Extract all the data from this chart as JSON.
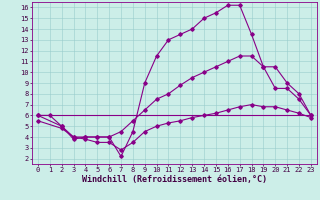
{
  "xlabel": "Windchill (Refroidissement éolien,°C)",
  "bg_color": "#cceee8",
  "line_color": "#880088",
  "xlim": [
    -0.5,
    23.5
  ],
  "ylim": [
    1.5,
    16.5
  ],
  "xticks": [
    0,
    1,
    2,
    3,
    4,
    5,
    6,
    7,
    8,
    9,
    10,
    11,
    12,
    13,
    14,
    15,
    16,
    17,
    18,
    19,
    20,
    21,
    22,
    23
  ],
  "yticks": [
    2,
    3,
    4,
    5,
    6,
    7,
    8,
    9,
    10,
    11,
    12,
    13,
    14,
    15,
    16
  ],
  "line1_x": [
    0,
    1,
    2,
    3,
    4,
    5,
    6,
    7,
    8,
    9,
    10,
    11,
    12,
    13,
    14,
    15,
    16,
    17,
    18,
    19,
    20,
    21,
    22,
    23
  ],
  "line1_y": [
    6.0,
    6.0,
    5.0,
    3.8,
    4.0,
    4.0,
    4.0,
    2.2,
    4.5,
    9.0,
    11.5,
    13.0,
    13.5,
    14.0,
    15.0,
    15.5,
    16.2,
    16.2,
    13.5,
    10.5,
    8.5,
    8.5,
    7.5,
    6.0
  ],
  "line2_x": [
    0,
    2,
    3,
    4,
    5,
    6,
    7,
    8,
    9,
    10,
    11,
    12,
    13,
    14,
    15,
    16,
    17,
    18,
    19,
    20,
    21,
    22,
    23
  ],
  "line2_y": [
    6.0,
    5.0,
    4.0,
    4.0,
    4.0,
    4.0,
    4.5,
    5.5,
    6.5,
    7.5,
    8.0,
    8.8,
    9.5,
    10.0,
    10.5,
    11.0,
    11.5,
    11.5,
    10.5,
    10.5,
    9.0,
    8.0,
    6.0
  ],
  "line3_x": [
    0,
    23
  ],
  "line3_y": [
    6.0,
    6.0
  ],
  "line4_x": [
    0,
    2,
    3,
    4,
    5,
    6,
    7,
    8,
    9,
    10,
    11,
    12,
    13,
    14,
    15,
    16,
    17,
    18,
    19,
    20,
    21,
    22,
    23
  ],
  "line4_y": [
    5.5,
    4.8,
    4.0,
    3.8,
    3.5,
    3.5,
    2.8,
    3.5,
    4.5,
    5.0,
    5.3,
    5.5,
    5.8,
    6.0,
    6.2,
    6.5,
    6.8,
    7.0,
    6.8,
    6.8,
    6.5,
    6.2,
    5.8
  ],
  "grid_color": "#99cccc",
  "marker": "D",
  "marker_size": 1.8,
  "linewidth": 0.8,
  "xlabel_fontsize": 6,
  "tick_fontsize": 5
}
